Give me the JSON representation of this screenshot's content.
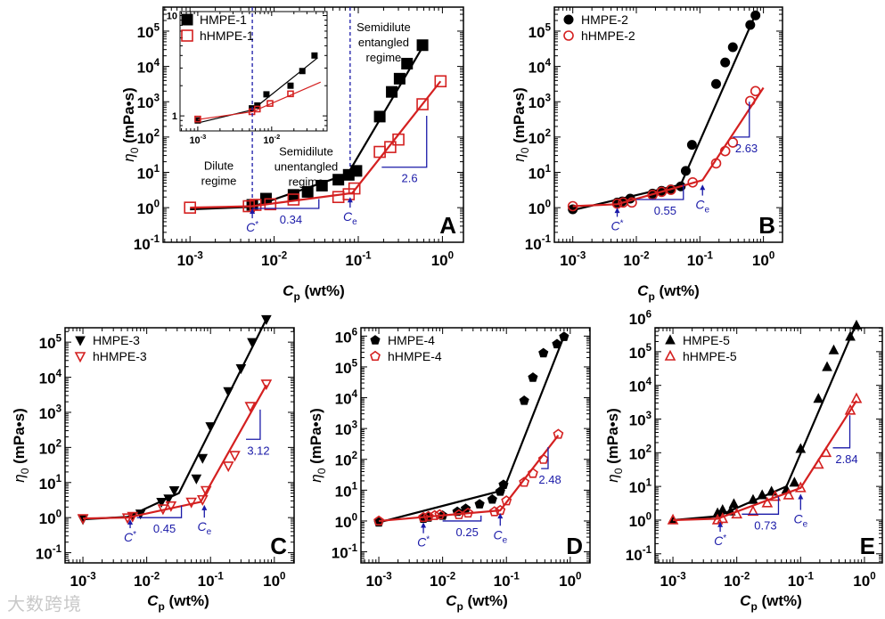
{
  "watermark": "大数跨境",
  "colors": {
    "hmpe": "#000000",
    "hhmpe": "#d42020",
    "annotation": "#1a1aa8"
  },
  "chart_data": [
    {
      "id": "A",
      "type": "scatter",
      "panel_label": "A",
      "xscale": "log",
      "yscale": "log",
      "xlabel_main": "C",
      "xlabel_sub": "p",
      "xlabel_unit": " (wt%)",
      "ylabel_main": "η",
      "ylabel_sub": "0",
      "ylabel_unit": " (mPa•s)",
      "xlim_log10": [
        -3.32,
        0.25
      ],
      "ylim_log10": [
        -0.98,
        5.68
      ],
      "x_tick_exponents": [
        -3,
        -2,
        -1,
        0
      ],
      "y_tick_exponents": [
        -1,
        0,
        1,
        2,
        3,
        4,
        5
      ],
      "legend_placement": "top-left",
      "series": [
        {
          "name": "HMPE-1",
          "marker": "square",
          "filled": true,
          "color": "#000000",
          "x": [
            0.0055,
            0.008,
            0.017,
            0.025,
            0.037,
            0.058,
            0.077,
            0.095,
            0.18,
            0.25,
            0.31,
            0.38,
            0.58
          ],
          "y": [
            1.2,
            1.8,
            2.3,
            2.8,
            4.2,
            6.2,
            8.5,
            11,
            380,
            1900,
            4500,
            12000,
            40000
          ],
          "fit": {
            "x": [
              0.001,
              0.0055,
              0.075,
              0.6
            ],
            "y": [
              0.9,
              1.05,
              9,
              40000
            ]
          }
        },
        {
          "name": "hHMPE-1",
          "marker": "square",
          "filled": false,
          "color": "#d42020",
          "x": [
            0.001,
            0.005,
            0.006,
            0.009,
            0.017,
            0.058,
            0.077,
            0.09,
            0.18,
            0.24,
            0.3,
            0.58,
            0.95
          ],
          "y": [
            1.0,
            1.1,
            1.2,
            1.25,
            1.7,
            2.0,
            2.4,
            3.5,
            38,
            52,
            85,
            850,
            3800
          ],
          "fit": {
            "x": [
              0.001,
              0.0055,
              0.085,
              0.95
            ],
            "y": [
              1.0,
              1.1,
              2.6,
              3800
            ]
          }
        }
      ],
      "dashed_lines": [
        {
          "x": 0.0055,
          "y_from": 1.0
        },
        {
          "x": 0.08,
          "y_from": 8
        }
      ],
      "slopes": [
        {
          "label": "0.34",
          "x1": 0.0055,
          "x2": 0.034,
          "y1": 0.95,
          "y2": 1.75
        },
        {
          "label": "2.6",
          "x1": 0.19,
          "x2": 0.65,
          "y1": 14,
          "y2": 400
        }
      ],
      "arrows": [
        {
          "main": "C",
          "sup": "*",
          "x": 0.0055,
          "y_tail": 0.5,
          "y_head": 0.95
        },
        {
          "main": "C",
          "sub": "e",
          "x": 0.08,
          "y_tail": 1.0,
          "y_head": 2.0
        }
      ],
      "texts": [
        {
          "lines": [
            "Dilute",
            "regime"
          ],
          "x": 0.0022,
          "y": 12
        },
        {
          "lines": [
            "Semidilute",
            "unentangled",
            "regime"
          ],
          "x": 0.024,
          "y": 30
        },
        {
          "lines": [
            "Semidilute",
            "entangled",
            "regime"
          ],
          "x": 0.2,
          "y": 100000
        }
      ],
      "inset": {
        "xlim_log10": [
          -3.24,
          -1.25
        ],
        "ylim_log10": [
          -0.15,
          1.04
        ],
        "x_tick_exponents": [
          -3,
          -2
        ],
        "y_tick_labels": [
          "1",
          "10"
        ],
        "y_tick_values": [
          1,
          10
        ],
        "series": [
          {
            "name": "HMPE-1",
            "x": [
              0.001,
              0.0054,
              0.0064,
              0.0085,
              0.018,
              0.026,
              0.038
            ],
            "y": [
              0.9,
              1.19,
              1.27,
              1.64,
              2.0,
              2.8,
              4.0
            ],
            "fit": {
              "x": [
                0.001,
                0.0055,
                0.042
              ],
              "y": [
                0.85,
                1.15,
                3.8
              ]
            }
          },
          {
            "name": "hHMPE-1",
            "x": [
              0.001,
              0.0054,
              0.0064,
              0.0095,
              0.018
            ],
            "y": [
              0.93,
              1.1,
              1.17,
              1.33,
              1.66
            ],
            "fit": {
              "x": [
                0.001,
                0.0055,
                0.046
              ],
              "y": [
                0.92,
                1.1,
                2.17
              ]
            }
          }
        ]
      }
    },
    {
      "id": "B",
      "type": "scatter",
      "panel_label": "B",
      "xscale": "log",
      "yscale": "log",
      "xlabel_main": "C",
      "xlabel_sub": "p",
      "xlabel_unit": " (wt%)",
      "ylabel_main": "η",
      "ylabel_sub": "0",
      "ylabel_unit": " (mPa•s)",
      "xlim_log10": [
        -3.29,
        0.3
      ],
      "ylim_log10": [
        -0.98,
        5.68
      ],
      "x_tick_exponents": [
        -3,
        -2,
        -1,
        0
      ],
      "y_tick_exponents": [
        -1,
        0,
        1,
        2,
        3,
        4,
        5
      ],
      "legend_placement": "top-left",
      "series": [
        {
          "name": "HMPE-2",
          "marker": "circle",
          "filled": true,
          "color": "#000000",
          "x": [
            0.001,
            0.005,
            0.006,
            0.008,
            0.018,
            0.025,
            0.035,
            0.05,
            0.06,
            0.075,
            0.18,
            0.25,
            0.33,
            0.62,
            0.75
          ],
          "y": [
            0.9,
            1.4,
            1.5,
            1.8,
            2.5,
            3,
            3.3,
            4,
            11,
            60,
            3200,
            13000,
            35000,
            150000,
            280000
          ],
          "fit": {
            "x": [
              0.001,
              0.05,
              0.75
            ],
            "y": [
              0.85,
              4.5,
              300000
            ]
          }
        },
        {
          "name": "hHMPE-2",
          "marker": "circle",
          "filled": false,
          "color": "#d42020",
          "x": [
            0.001,
            0.005,
            0.0062,
            0.0085,
            0.018,
            0.025,
            0.035,
            0.077,
            0.18,
            0.25,
            0.33,
            0.62,
            0.75
          ],
          "y": [
            1.1,
            1.3,
            1.4,
            1.4,
            2.3,
            2.8,
            3.2,
            5.2,
            18,
            40,
            70,
            1050,
            2000
          ],
          "fit": {
            "x": [
              0.001,
              0.005,
              0.11,
              1.0
            ],
            "y": [
              1.1,
              1.25,
              6,
              2500
            ]
          }
        }
      ],
      "dashed_lines": [],
      "slopes": [
        {
          "label": "0.55",
          "x1": 0.01,
          "x2": 0.055,
          "y1": 1.7,
          "y2": 4.5
        },
        {
          "label": "2.63",
          "x1": 0.33,
          "x2": 0.6,
          "y1": 100,
          "y2": 1000
        }
      ],
      "arrows": [
        {
          "main": "C",
          "sup": "*",
          "x": 0.005,
          "y_tail": 0.55,
          "y_head": 1.0
        },
        {
          "main": "C",
          "sub": "e",
          "x": 0.11,
          "y_tail": 2.2,
          "y_head": 4.5
        }
      ],
      "texts": []
    },
    {
      "id": "C",
      "type": "scatter",
      "panel_label": "C",
      "xscale": "log",
      "yscale": "log",
      "xlabel_main": "C",
      "xlabel_sub": "p",
      "xlabel_unit": " (wt%)",
      "ylabel_main": "η",
      "ylabel_sub": "0",
      "ylabel_unit": " (mPa•s)",
      "xlim_log10": [
        -3.28,
        0.31
      ],
      "ylim_log10": [
        -1.29,
        5.41
      ],
      "x_tick_exponents": [
        -3,
        -2,
        -1,
        0
      ],
      "y_tick_exponents": [
        -1,
        0,
        1,
        2,
        3,
        4,
        5
      ],
      "legend_placement": "top-left",
      "series": [
        {
          "name": "HMPE-3",
          "marker": "triangle-down",
          "filled": true,
          "color": "#000000",
          "x": [
            0.001,
            0.006,
            0.008,
            0.017,
            0.022,
            0.027,
            0.06,
            0.075,
            0.1,
            0.19,
            0.3,
            0.45,
            0.75
          ],
          "y": [
            0.9,
            1.1,
            1.3,
            2.8,
            3.5,
            6,
            13,
            50,
            400,
            4000,
            18000,
            100000,
            450000
          ],
          "fit": {
            "x": [
              0.001,
              0.005,
              0.032,
              0.75
            ],
            "y": [
              0.9,
              1.05,
              5,
              450000
            ]
          }
        },
        {
          "name": "hHMPE-3",
          "marker": "triangle-down",
          "filled": false,
          "color": "#d42020",
          "x": [
            0.001,
            0.005,
            0.006,
            0.018,
            0.024,
            0.05,
            0.075,
            0.085,
            0.19,
            0.24,
            0.42,
            0.75
          ],
          "y": [
            0.95,
            1.0,
            1.1,
            1.8,
            2.2,
            2.8,
            3.3,
            6,
            30,
            60,
            1500,
            6500
          ],
          "fit": {
            "x": [
              0.001,
              0.005,
              0.07,
              0.75
            ],
            "y": [
              0.95,
              1.0,
              2.8,
              6000
            ]
          }
        }
      ],
      "dashed_lines": [],
      "slopes": [
        {
          "label": "0.45",
          "x1": 0.007,
          "x2": 0.035,
          "y1": 1.0,
          "y2": 2.2
        },
        {
          "label": "3.12",
          "x1": 0.36,
          "x2": 0.6,
          "y1": 170,
          "y2": 1200
        }
      ],
      "arrows": [
        {
          "main": "C",
          "sup": "*",
          "x": 0.0055,
          "y_tail": 0.5,
          "y_head": 0.9
        },
        {
          "main": "C",
          "sub": "e",
          "x": 0.08,
          "y_tail": 1.0,
          "y_head": 2.3
        }
      ],
      "texts": []
    },
    {
      "id": "D",
      "type": "scatter",
      "panel_label": "D",
      "xscale": "log",
      "yscale": "log",
      "xlabel_main": "C",
      "xlabel_sub": "p",
      "xlabel_unit": " (wt%)",
      "ylabel_main": "η",
      "ylabel_sub": "0",
      "ylabel_unit": " (mPa•s)",
      "xlim_log10": [
        -3.28,
        0.31
      ],
      "ylim_log10": [
        -1.36,
        6.27
      ],
      "x_tick_exponents": [
        -3,
        -2,
        -1,
        0
      ],
      "y_tick_exponents": [
        -1,
        0,
        1,
        2,
        3,
        4,
        5,
        6
      ],
      "legend_placement": "top-left",
      "series": [
        {
          "name": "HMPE-4",
          "marker": "pentagon",
          "filled": true,
          "color": "#000000",
          "x": [
            0.001,
            0.005,
            0.006,
            0.01,
            0.017,
            0.023,
            0.038,
            0.06,
            0.08,
            0.09,
            0.19,
            0.26,
            0.38,
            0.62,
            0.8
          ],
          "y": [
            0.9,
            1.2,
            1.3,
            1.5,
            2,
            2.5,
            3.5,
            5,
            9,
            15,
            8000,
            45000,
            280000,
            550000,
            950000
          ],
          "fit": {
            "x": [
              0.001,
              0.09,
              0.8
            ],
            "y": [
              0.9,
              10,
              1000000
            ]
          }
        },
        {
          "name": "hHMPE-4",
          "marker": "pentagon",
          "filled": false,
          "color": "#d42020",
          "x": [
            0.001,
            0.005,
            0.006,
            0.0075,
            0.009,
            0.018,
            0.025,
            0.065,
            0.08,
            0.1,
            0.19,
            0.26,
            0.38,
            0.65
          ],
          "y": [
            1.0,
            1.3,
            1.4,
            1.5,
            1.6,
            1.6,
            1.8,
            2.0,
            2.2,
            4.5,
            18,
            35,
            100,
            650
          ],
          "fit": {
            "x": [
              0.001,
              0.08,
              0.65
            ],
            "y": [
              1.0,
              2.2,
              600
            ]
          }
        }
      ],
      "dashed_lines": [],
      "slopes": [
        {
          "label": "0.25",
          "x1": 0.01,
          "x2": 0.04,
          "y1": 1.0,
          "y2": 1.5
        },
        {
          "label": "2.48",
          "x1": 0.35,
          "x2": 0.45,
          "y1": 50,
          "y2": 250
        }
      ],
      "arrows": [
        {
          "main": "C",
          "sup": "*",
          "x": 0.005,
          "y_tail": 0.4,
          "y_head": 0.9
        },
        {
          "main": "C",
          "sub": "e",
          "x": 0.08,
          "y_tail": 0.7,
          "y_head": 1.8
        }
      ],
      "texts": []
    },
    {
      "id": "E",
      "type": "scatter",
      "panel_label": "E",
      "xscale": "log",
      "yscale": "log",
      "xlabel_main": "C",
      "xlabel_sub": "p",
      "xlabel_unit": " (wt%)",
      "ylabel_main": "η",
      "ylabel_sub": "0",
      "ylabel_unit": " (mPa•s)",
      "xlim_log10": [
        -3.28,
        0.28
      ],
      "ylim_log10": [
        -1.27,
        5.71
      ],
      "x_tick_exponents": [
        -3,
        -2,
        -1,
        0
      ],
      "y_tick_exponents": [
        -1,
        0,
        1,
        2,
        3,
        4,
        5,
        6
      ],
      "legend_placement": "top-left",
      "series": [
        {
          "name": "HMPE-5",
          "marker": "triangle-up",
          "filled": true,
          "color": "#000000",
          "x": [
            0.001,
            0.005,
            0.006,
            0.008,
            0.009,
            0.018,
            0.025,
            0.035,
            0.06,
            0.08,
            0.1,
            0.19,
            0.26,
            0.33,
            0.6,
            0.75
          ],
          "y": [
            1.0,
            1.6,
            2,
            1.8,
            3,
            4,
            5.5,
            7,
            8,
            13,
            130,
            4000,
            35000,
            110000,
            280000,
            600000
          ],
          "fit": {
            "x": [
              0.001,
              0.005,
              0.06,
              0.75
            ],
            "y": [
              1.0,
              1.3,
              10,
              700000
            ]
          }
        },
        {
          "name": "hHMPE-5",
          "marker": "triangle-up",
          "filled": false,
          "color": "#d42020",
          "x": [
            0.001,
            0.005,
            0.006,
            0.01,
            0.018,
            0.03,
            0.04,
            0.065,
            0.1,
            0.19,
            0.25,
            0.6,
            0.75
          ],
          "y": [
            1.0,
            1.0,
            1.1,
            1.5,
            1.8,
            3.2,
            5,
            5.5,
            9,
            45,
            100,
            1800,
            4000
          ],
          "fit": {
            "x": [
              0.001,
              0.005,
              0.1,
              0.75
            ],
            "y": [
              1.0,
              1.1,
              9,
              3500
            ]
          }
        }
      ],
      "dashed_lines": [],
      "slopes": [
        {
          "label": "0.73",
          "x1": 0.012,
          "x2": 0.045,
          "y1": 1.5,
          "y2": 5
        },
        {
          "label": "2.84",
          "x1": 0.32,
          "x2": 0.59,
          "y1": 140,
          "y2": 1300
        }
      ],
      "arrows": [
        {
          "main": "C",
          "sup": "*",
          "x": 0.0055,
          "y_tail": 0.45,
          "y_head": 0.9
        },
        {
          "main": "C",
          "sub": "e",
          "x": 0.1,
          "y_tail": 2.0,
          "y_head": 6
        }
      ],
      "texts": []
    }
  ]
}
